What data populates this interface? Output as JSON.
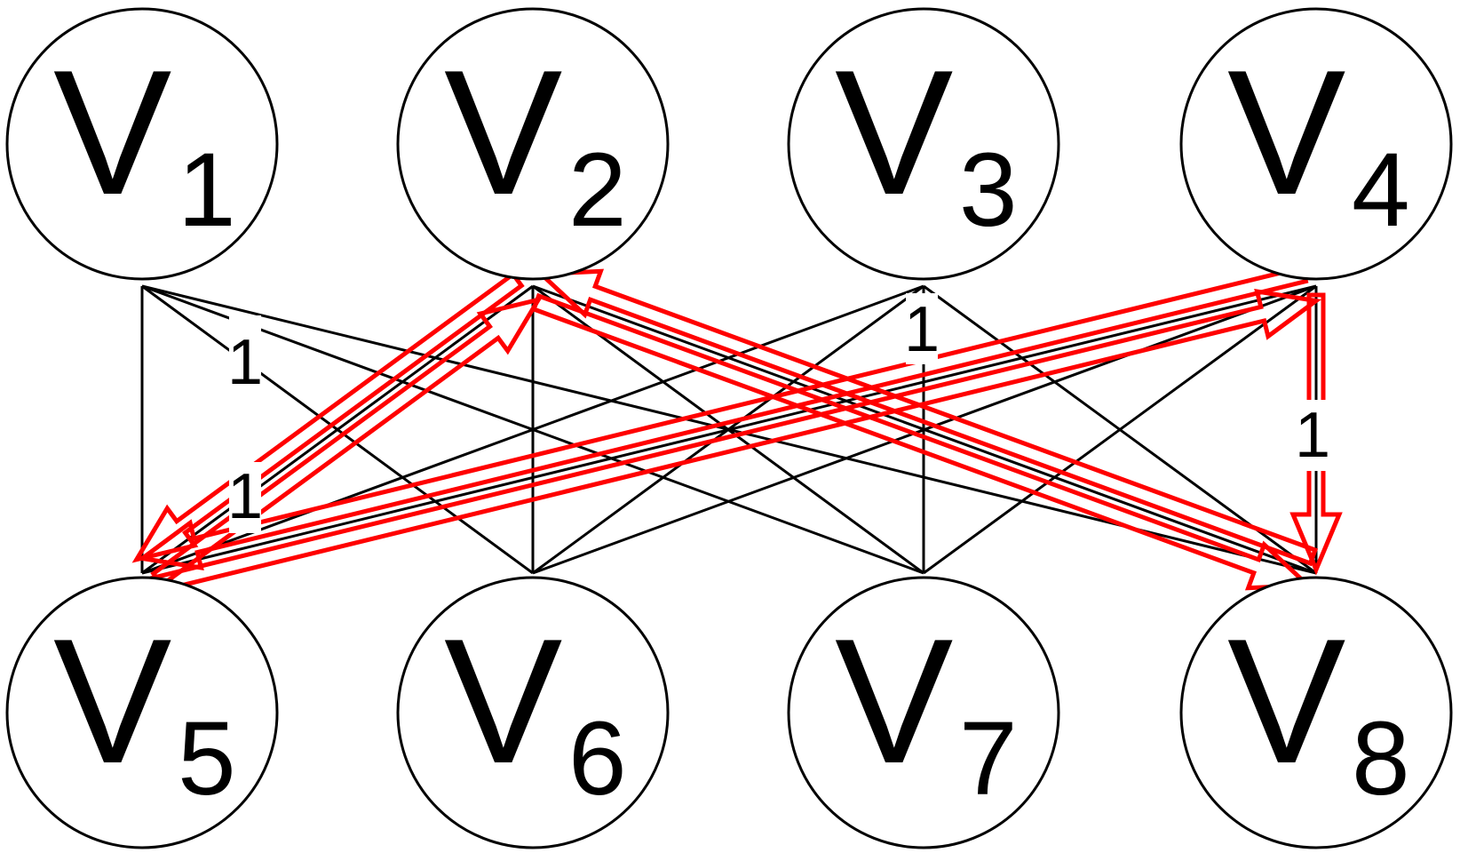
{
  "graph": {
    "nodes": [
      {
        "id": "v1",
        "label": "V",
        "sub": "1"
      },
      {
        "id": "v2",
        "label": "V",
        "sub": "2"
      },
      {
        "id": "v3",
        "label": "V",
        "sub": "3"
      },
      {
        "id": "v4",
        "label": "V",
        "sub": "4"
      },
      {
        "id": "v5",
        "label": "V",
        "sub": "5"
      },
      {
        "id": "v6",
        "label": "V",
        "sub": "6"
      },
      {
        "id": "v7",
        "label": "V",
        "sub": "7"
      },
      {
        "id": "v8",
        "label": "V",
        "sub": "8"
      }
    ],
    "edges": [
      {
        "from": "v1",
        "to": "v5"
      },
      {
        "from": "v1",
        "to": "v6"
      },
      {
        "from": "v1",
        "to": "v7"
      },
      {
        "from": "v1",
        "to": "v8"
      },
      {
        "from": "v2",
        "to": "v5"
      },
      {
        "from": "v2",
        "to": "v6"
      },
      {
        "from": "v2",
        "to": "v7"
      },
      {
        "from": "v2",
        "to": "v8"
      },
      {
        "from": "v3",
        "to": "v5"
      },
      {
        "from": "v3",
        "to": "v6"
      },
      {
        "from": "v3",
        "to": "v7"
      },
      {
        "from": "v3",
        "to": "v8"
      },
      {
        "from": "v4",
        "to": "v5"
      },
      {
        "from": "v4",
        "to": "v6"
      },
      {
        "from": "v4",
        "to": "v7"
      },
      {
        "from": "v4",
        "to": "v8"
      }
    ],
    "highlighted_arrows": [
      {
        "from": "v2",
        "to": "v5"
      },
      {
        "from": "v5",
        "to": "v2"
      },
      {
        "from": "v2",
        "to": "v8"
      },
      {
        "from": "v8",
        "to": "v2"
      },
      {
        "from": "v5",
        "to": "v4"
      },
      {
        "from": "v4",
        "to": "v5"
      },
      {
        "from": "v4",
        "to": "v8"
      }
    ],
    "edge_labels": [
      {
        "id": "label-1",
        "text": "1"
      },
      {
        "id": "label-2",
        "text": "1"
      },
      {
        "id": "label-3",
        "text": "1"
      },
      {
        "id": "label-4",
        "text": "1"
      }
    ],
    "colors": {
      "edge": "#000000",
      "highlight": "#ff0000",
      "node_fill": "#ffffff",
      "node_stroke": "#000000"
    }
  }
}
